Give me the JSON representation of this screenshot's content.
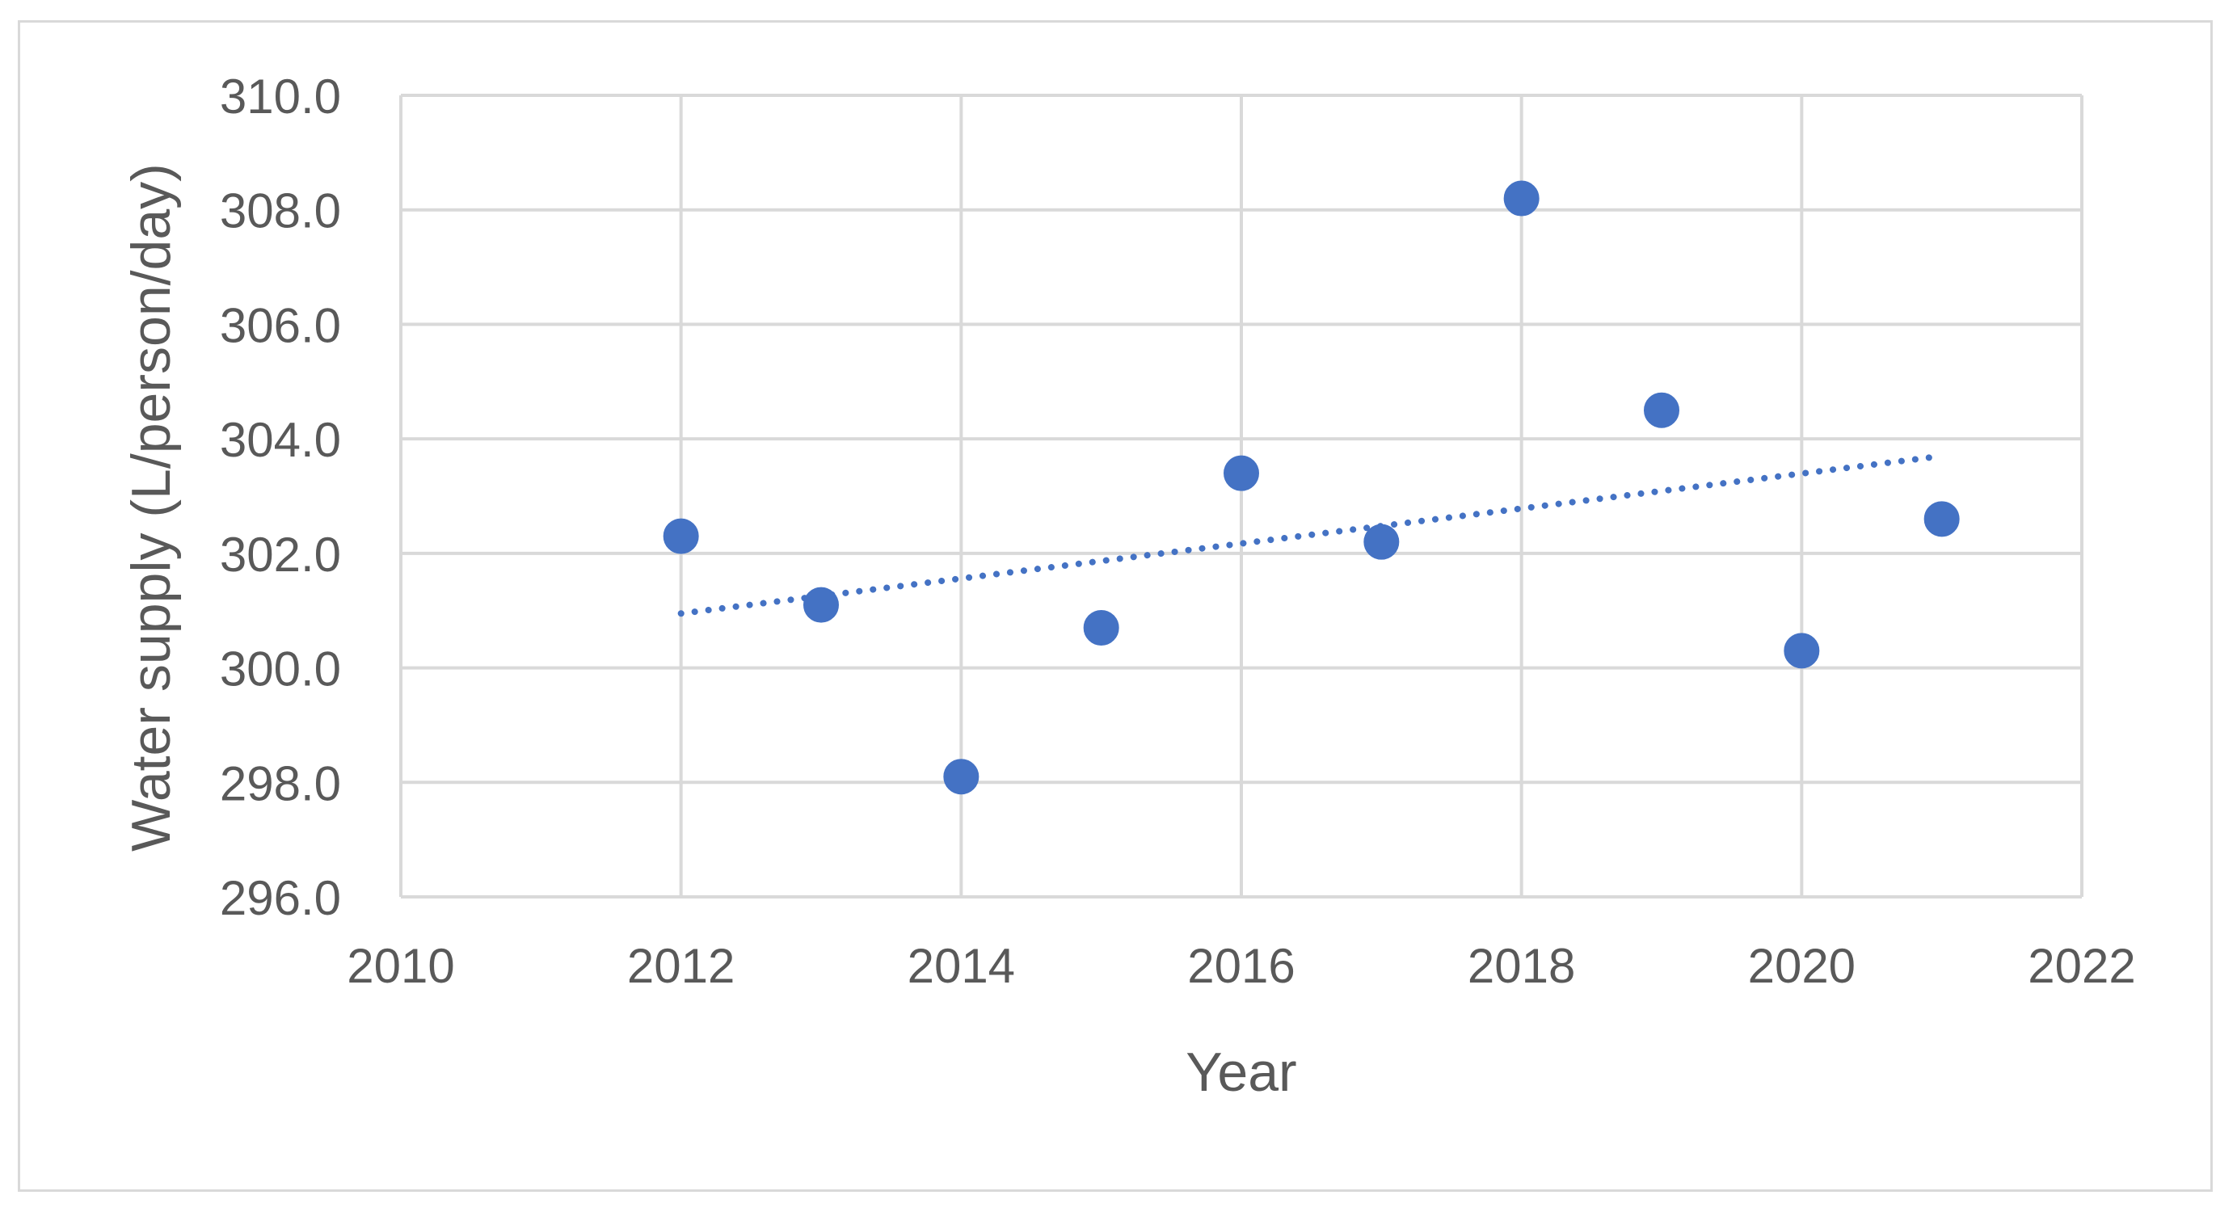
{
  "chart_data": {
    "type": "scatter",
    "title": "",
    "xlabel": "Year",
    "ylabel": "Water supply (L/person/day)",
    "xlim": [
      2010,
      2022
    ],
    "ylim": [
      296.0,
      310.0
    ],
    "x_ticks": [
      2010,
      2012,
      2014,
      2016,
      2018,
      2020,
      2022
    ],
    "x_tick_labels": [
      "2010",
      "2012",
      "2014",
      "2016",
      "2018",
      "2020",
      "2022"
    ],
    "y_ticks": [
      296,
      298,
      300,
      302,
      304,
      306,
      308,
      310
    ],
    "y_tick_labels": [
      "296.0",
      "298.0",
      "300.0",
      "302.0",
      "304.0",
      "306.0",
      "308.0",
      "310.0"
    ],
    "grid": true,
    "legend": "none",
    "series": [
      {
        "color": "#4472c4",
        "points": [
          {
            "x": 2012,
            "y": 302.3
          },
          {
            "x": 2013,
            "y": 301.1
          },
          {
            "x": 2014,
            "y": 298.1
          },
          {
            "x": 2015,
            "y": 300.7
          },
          {
            "x": 2016,
            "y": 303.4
          },
          {
            "x": 2017,
            "y": 302.2
          },
          {
            "x": 2018,
            "y": 308.2
          },
          {
            "x": 2019,
            "y": 304.5
          },
          {
            "x": 2020,
            "y": 300.3
          },
          {
            "x": 2021,
            "y": 302.6
          }
        ]
      }
    ],
    "trendline": {
      "type": "linear",
      "style": "dotted",
      "color": "#4472c4",
      "start": {
        "x": 2012,
        "y": 300.95
      },
      "end": {
        "x": 2021,
        "y": 303.7
      }
    }
  }
}
